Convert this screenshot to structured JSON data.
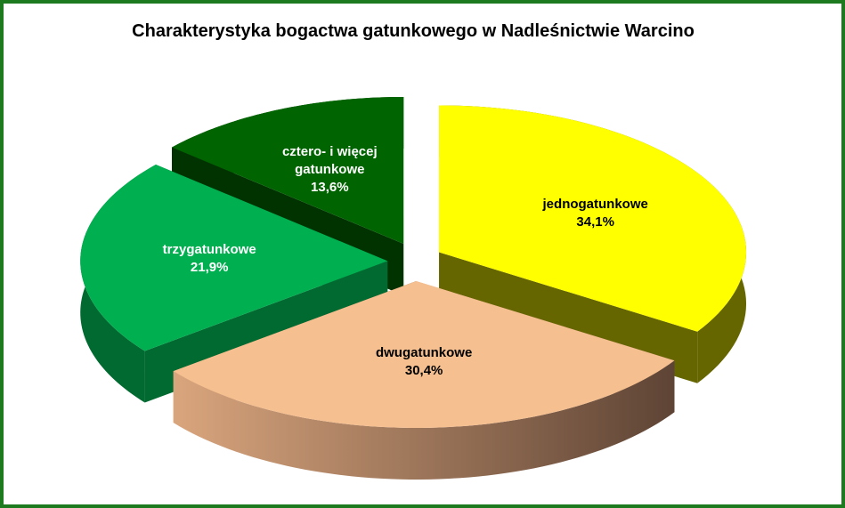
{
  "chart_data": {
    "type": "pie3d",
    "title": "Charakterystyka bogactwa gatunkowego w Nadleśnictwie Warcino",
    "categories": [
      "jednogatunkowe",
      "dwugatunkowe",
      "trzygatunkowe",
      "cztero- i więcej gatunkowe"
    ],
    "values": [
      34.1,
      30.4,
      21.9,
      13.6
    ],
    "value_labels": [
      "34,1%",
      "30,4%",
      "21,9%",
      "13,6%"
    ],
    "colors": [
      "#ffff00",
      "#f5bf8f",
      "#00b050",
      "#006400"
    ]
  }
}
